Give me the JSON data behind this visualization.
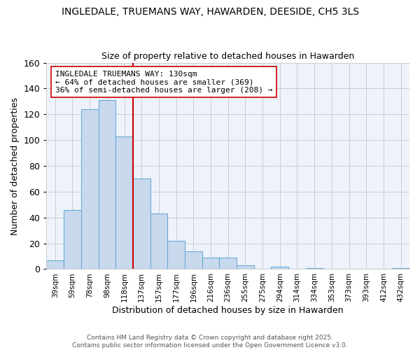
{
  "title": "INGLEDALE, TRUEMANS WAY, HAWARDEN, DEESIDE, CH5 3LS",
  "subtitle": "Size of property relative to detached houses in Hawarden",
  "xlabel": "Distribution of detached houses by size in Hawarden",
  "ylabel": "Number of detached properties",
  "annotation_line1": "INGLEDALE TRUEMANS WAY: 130sqm",
  "annotation_line2": "← 64% of detached houses are smaller (369)",
  "annotation_line3": "36% of semi-detached houses are larger (208) →",
  "categories": [
    "39sqm",
    "59sqm",
    "78sqm",
    "98sqm",
    "118sqm",
    "137sqm",
    "157sqm",
    "177sqm",
    "196sqm",
    "216sqm",
    "236sqm",
    "255sqm",
    "275sqm",
    "294sqm",
    "314sqm",
    "334sqm",
    "353sqm",
    "373sqm",
    "393sqm",
    "412sqm",
    "432sqm"
  ],
  "values": [
    7,
    46,
    124,
    131,
    103,
    70,
    43,
    22,
    14,
    9,
    9,
    3,
    0,
    2,
    0,
    1,
    0,
    0,
    0,
    0,
    1
  ],
  "bar_color": "#c8d9ee",
  "bar_edge_color": "#6aaad4",
  "red_line_index": 5,
  "red_line_color": "#cc0000",
  "annotation_box_edge_color": "#cc0000",
  "ylim": [
    0,
    160
  ],
  "yticks": [
    0,
    20,
    40,
    60,
    80,
    100,
    120,
    140,
    160
  ],
  "grid_color": "#cccccc",
  "bg_color": "#eef3fb",
  "footer_line1": "Contains HM Land Registry data © Crown copyright and database right 2025.",
  "footer_line2": "Contains public sector information licensed under the Open Government Licence v3.0."
}
